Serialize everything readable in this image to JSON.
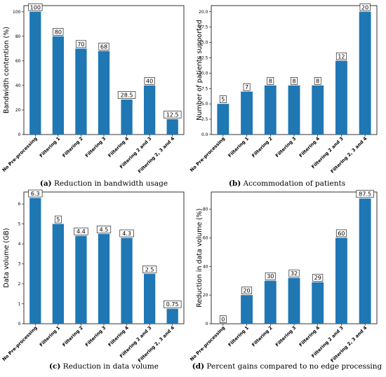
{
  "chart_data": [
    {
      "type": "bar",
      "panel": "a",
      "caption_letter": "(a)",
      "caption_text": "Reduction in bandwidth usage",
      "ylabel": "Bandwidth contention (%)",
      "categories": [
        "No Pre-processing",
        "Filtering 1",
        "Filtering 2",
        "Filtering 3",
        "Filtering 4",
        "Filtering 2 and 3",
        "Filtering 2, 3 and 4"
      ],
      "values": [
        100,
        80,
        70,
        68,
        28.5,
        40,
        12.5
      ],
      "value_labels": [
        "100",
        "80",
        "70",
        "68",
        "28.5",
        "40",
        "12.5"
      ],
      "ylim": [
        0,
        105
      ],
      "yticks": [
        0,
        20,
        40,
        60,
        80,
        100
      ],
      "ytick_labels": [
        "0",
        "20",
        "40",
        "60",
        "80",
        "100"
      ]
    },
    {
      "type": "bar",
      "panel": "b",
      "caption_letter": "(b)",
      "caption_text": "Accommodation of patients",
      "ylabel": "Number of patients supported",
      "categories": [
        "No Pre-processing",
        "Filtering 1",
        "Filtering 2",
        "Filtering 3",
        "Filtering 4",
        "Filtering 2 and 3",
        "Filtering 2, 3 and 4"
      ],
      "values": [
        5,
        7,
        8,
        8,
        8,
        12,
        20
      ],
      "value_labels": [
        "5",
        "7",
        "8",
        "8",
        "8",
        "12",
        "20"
      ],
      "ylim": [
        0,
        21
      ],
      "yticks": [
        0,
        2.5,
        5,
        7.5,
        10,
        12.5,
        15,
        17.5,
        20
      ],
      "ytick_labels": [
        "0.0",
        "2.5",
        "5.0",
        "7.5",
        "10.0",
        "12.5",
        "15.0",
        "17.5",
        "20.0"
      ]
    },
    {
      "type": "bar",
      "panel": "c",
      "caption_letter": "(c)",
      "caption_text": "Reduction in data volume",
      "ylabel": "Data volume (GB)",
      "categories": [
        "No Pre-processing",
        "Filtering 1",
        "Filtering 2",
        "Filtering 3",
        "Filtering 4",
        "Filtering 2 and 3",
        "Filtering 2, 3 and 4"
      ],
      "values": [
        6.3,
        5,
        4.4,
        4.5,
        4.3,
        2.5,
        0.75
      ],
      "value_labels": [
        "6.3",
        "5",
        "4.4",
        "4.5",
        "4.3",
        "2.5",
        "0.75"
      ],
      "ylim": [
        0,
        6.6
      ],
      "yticks": [
        0,
        1,
        2,
        3,
        4,
        5,
        6
      ],
      "ytick_labels": [
        "0",
        "1",
        "2",
        "3",
        "4",
        "5",
        "6"
      ]
    },
    {
      "type": "bar",
      "panel": "d",
      "caption_letter": "(d)",
      "caption_text": "Percent gains compared to no edge processing",
      "ylabel": "Reduction in data volume (%)",
      "categories": [
        "No Pre-processing",
        "Filtering 1",
        "Filtering 2",
        "Filtering 3",
        "Filtering 4",
        "Filtering 2 and 3",
        "Filtering 2, 3 and 4"
      ],
      "values": [
        0,
        20,
        30,
        32,
        29,
        60,
        87.5
      ],
      "value_labels": [
        "0",
        "20",
        "30",
        "32",
        "29",
        "60",
        "87.5"
      ],
      "ylim": [
        0,
        92
      ],
      "yticks": [
        0,
        20,
        40,
        60,
        80
      ],
      "ytick_labels": [
        "0",
        "20",
        "40",
        "60",
        "80"
      ]
    }
  ]
}
